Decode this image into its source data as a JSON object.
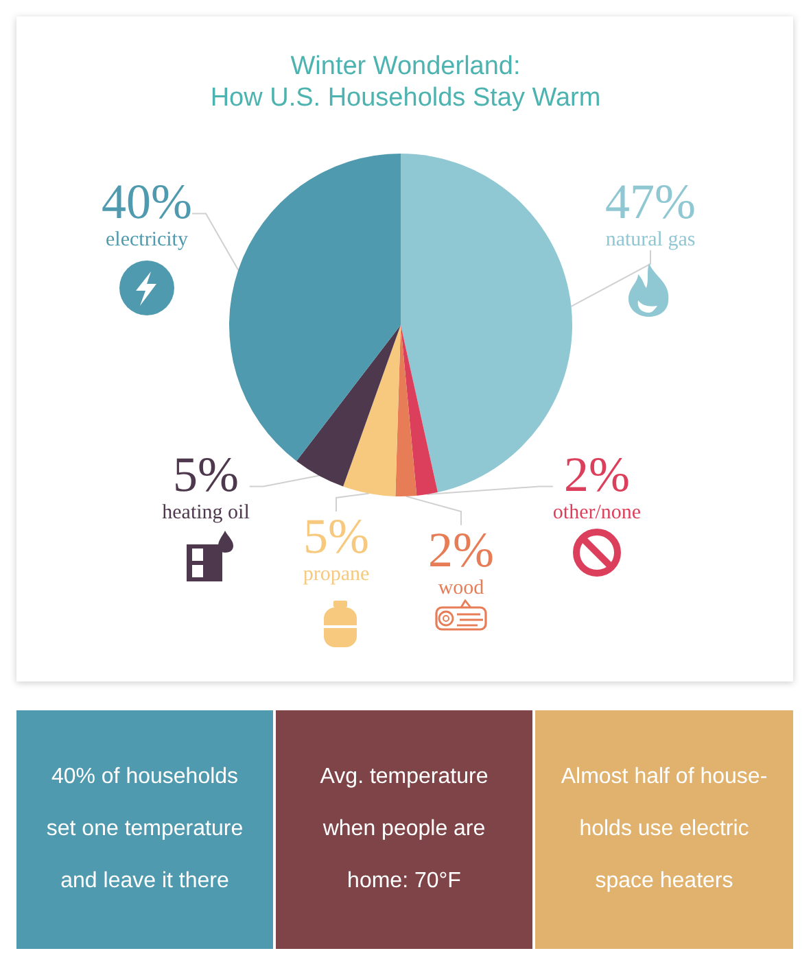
{
  "chart_data": [
    {
      "type": "pie",
      "title": "Winter Wonderland:",
      "subtitle": "How U.S. Households Stay Warm",
      "categories": [
        "natural gas",
        "other/none",
        "wood",
        "propane",
        "heating oil",
        "electricity"
      ],
      "values": [
        47,
        2,
        2,
        5,
        5,
        40
      ],
      "value_labels": [
        "47%",
        "2%",
        "2%",
        "5%",
        "5%",
        "40%"
      ],
      "colors": [
        "#8fc7d3",
        "#dc3f5b",
        "#e77d57",
        "#f7c97e",
        "#4e384d",
        "#4f9aae"
      ]
    },
    {
      "type": "other",
      "annotations": [
        "40% of households",
        "set one temperature",
        "and leave it there"
      ]
    },
    {
      "type": "other",
      "annotations": [
        "Avg. temperature",
        "when people are",
        "home: 70°F"
      ]
    },
    {
      "type": "other",
      "annotations": [
        "Almost half of house-",
        "holds use electric",
        "space heaters"
      ]
    }
  ]
}
